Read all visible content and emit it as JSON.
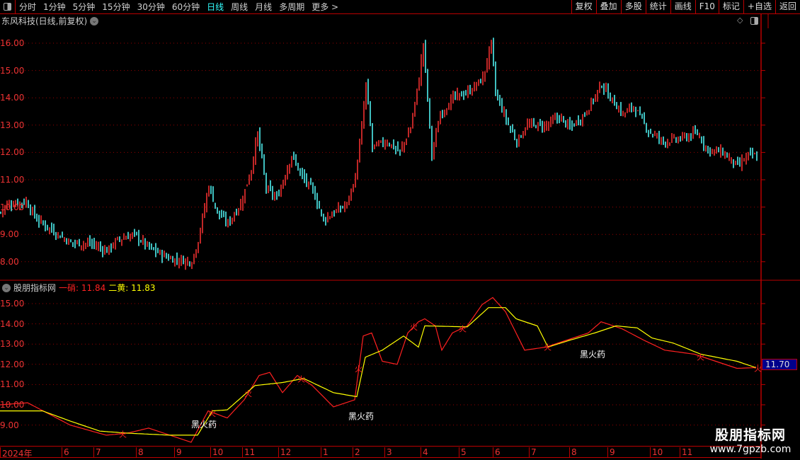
{
  "toolbar": {
    "periods": [
      "分时",
      "1分钟",
      "5分钟",
      "15分钟",
      "30分钟",
      "60分钟",
      "日线",
      "周线",
      "月线",
      "多周期",
      "更多 >"
    ],
    "active_period": "日线",
    "actions": [
      "复权",
      "叠加",
      "多股",
      "统计",
      "画线",
      "F10",
      "标记",
      "+自选",
      "返回"
    ]
  },
  "main_chart": {
    "title": "东风科技(日线,前复权)",
    "price_ticks": [
      "16.00",
      "15.00",
      "14.00",
      "13.00",
      "12.00",
      "11.00",
      "10.00",
      "9.00",
      "8.00"
    ],
    "price_range": [
      7.6,
      16.8
    ],
    "closes": [
      [
        0,
        9.8
      ],
      [
        3,
        10.1
      ],
      [
        12,
        10.2
      ],
      [
        17,
        9.55
      ],
      [
        27,
        9.0
      ],
      [
        33,
        8.7
      ],
      [
        43,
        8.65
      ],
      [
        50,
        8.4
      ],
      [
        55,
        8.8
      ],
      [
        63,
        9.0
      ],
      [
        70,
        8.5
      ],
      [
        80,
        8.1
      ],
      [
        90,
        8.0
      ],
      [
        93,
        8.8
      ],
      [
        98,
        10.8
      ],
      [
        102,
        9.8
      ],
      [
        107,
        9.4
      ],
      [
        113,
        10.1
      ],
      [
        118,
        11.4
      ],
      [
        121,
        12.7
      ],
      [
        125,
        10.7
      ],
      [
        130,
        10.3
      ],
      [
        137,
        11.9
      ],
      [
        142,
        11.1
      ],
      [
        147,
        10.6
      ],
      [
        152,
        9.55
      ],
      [
        157,
        9.8
      ],
      [
        163,
        10.1
      ],
      [
        167,
        11.1
      ],
      [
        170,
        12.9
      ],
      [
        172,
        14.5
      ],
      [
        175,
        12.2
      ],
      [
        182,
        12.4
      ],
      [
        188,
        12.0
      ],
      [
        193,
        12.9
      ],
      [
        197,
        14.7
      ],
      [
        199,
        16.0
      ],
      [
        203,
        11.9
      ],
      [
        207,
        13.4
      ],
      [
        213,
        14.0
      ],
      [
        220,
        14.2
      ],
      [
        227,
        14.7
      ],
      [
        231,
        16.0
      ],
      [
        233,
        14.2
      ],
      [
        238,
        13.2
      ],
      [
        243,
        12.4
      ],
      [
        248,
        13.0
      ],
      [
        257,
        13.0
      ],
      [
        263,
        13.3
      ],
      [
        268,
        12.9
      ],
      [
        275,
        13.4
      ],
      [
        283,
        14.5
      ],
      [
        287,
        14.0
      ],
      [
        293,
        13.4
      ],
      [
        298,
        13.7
      ],
      [
        305,
        12.8
      ],
      [
        312,
        12.4
      ],
      [
        320,
        12.5
      ],
      [
        328,
        12.7
      ],
      [
        333,
        12.1
      ],
      [
        340,
        12.0
      ],
      [
        347,
        11.5
      ],
      [
        352,
        11.9
      ],
      [
        356,
        11.85
      ]
    ],
    "colors": {
      "up": "#ff3232",
      "down": "#54ffff",
      "grid": "#a00000"
    }
  },
  "indicator": {
    "name": "股朋指标网",
    "line1_label": "一硝",
    "line1_value": "11.84",
    "line2_label": "二黄",
    "line2_value": "11.83",
    "ticks": [
      "15.00",
      "14.00",
      "13.00",
      "12.00",
      "11.00",
      "10.00",
      "9.00"
    ],
    "range": [
      8.1,
      15.8
    ],
    "current_price": "11.70",
    "line1": [
      [
        0,
        10.0
      ],
      [
        13,
        10.1
      ],
      [
        23,
        9.55
      ],
      [
        33,
        9.0
      ],
      [
        50,
        8.5
      ],
      [
        60,
        8.6
      ],
      [
        70,
        8.85
      ],
      [
        80,
        8.5
      ],
      [
        90,
        8.15
      ],
      [
        98,
        9.7
      ],
      [
        107,
        9.35
      ],
      [
        115,
        10.25
      ],
      [
        122,
        11.45
      ],
      [
        127,
        11.6
      ],
      [
        133,
        10.6
      ],
      [
        140,
        11.45
      ],
      [
        147,
        10.95
      ],
      [
        157,
        9.9
      ],
      [
        167,
        10.25
      ],
      [
        171,
        13.4
      ],
      [
        175,
        13.55
      ],
      [
        180,
        12.15
      ],
      [
        187,
        12.0
      ],
      [
        192,
        13.55
      ],
      [
        197,
        14.1
      ],
      [
        200,
        14.25
      ],
      [
        205,
        13.9
      ],
      [
        208,
        12.7
      ],
      [
        213,
        13.55
      ],
      [
        220,
        13.9
      ],
      [
        227,
        14.95
      ],
      [
        232,
        15.3
      ],
      [
        238,
        14.6
      ],
      [
        247,
        12.7
      ],
      [
        257,
        12.85
      ],
      [
        267,
        13.2
      ],
      [
        277,
        13.55
      ],
      [
        283,
        14.1
      ],
      [
        293,
        13.75
      ],
      [
        303,
        13.2
      ],
      [
        313,
        12.7
      ],
      [
        327,
        12.5
      ],
      [
        337,
        12.15
      ],
      [
        347,
        11.8
      ],
      [
        356,
        11.84
      ]
    ],
    "line2": [
      [
        0,
        9.7
      ],
      [
        20,
        9.7
      ],
      [
        33,
        9.2
      ],
      [
        47,
        8.7
      ],
      [
        60,
        8.6
      ],
      [
        80,
        8.5
      ],
      [
        93,
        8.5
      ],
      [
        100,
        9.7
      ],
      [
        107,
        9.75
      ],
      [
        120,
        10.95
      ],
      [
        133,
        11.1
      ],
      [
        143,
        11.3
      ],
      [
        157,
        10.6
      ],
      [
        168,
        10.4
      ],
      [
        172,
        12.35
      ],
      [
        180,
        12.7
      ],
      [
        190,
        13.4
      ],
      [
        197,
        12.85
      ],
      [
        200,
        13.9
      ],
      [
        220,
        13.85
      ],
      [
        230,
        14.8
      ],
      [
        238,
        14.8
      ],
      [
        243,
        14.25
      ],
      [
        253,
        13.9
      ],
      [
        258,
        12.85
      ],
      [
        267,
        13.15
      ],
      [
        280,
        13.55
      ],
      [
        290,
        13.9
      ],
      [
        300,
        13.8
      ],
      [
        307,
        13.3
      ],
      [
        317,
        13.05
      ],
      [
        330,
        12.5
      ],
      [
        347,
        12.15
      ],
      [
        356,
        11.83
      ]
    ],
    "signals": {
      "text": "黑火药",
      "marker": "火",
      "signal_days": [
        94,
        168,
        277
      ],
      "marker_days": [
        58,
        100,
        117,
        142,
        169,
        195,
        218,
        258,
        330,
        357
      ]
    },
    "colors": {
      "line1": "#ff2020",
      "line2": "#ffff00"
    }
  },
  "date_axis": {
    "labels": [
      [
        "2024年",
        0
      ],
      [
        "6",
        29
      ],
      [
        "7",
        44
      ],
      [
        "8",
        64
      ],
      [
        "9",
        82
      ],
      [
        "10",
        99
      ],
      [
        "11",
        114
      ],
      [
        "12",
        131
      ],
      [
        "1",
        151
      ],
      [
        "2",
        166
      ],
      [
        "3",
        181
      ],
      [
        "4",
        198
      ],
      [
        "5",
        216
      ],
      [
        "6",
        232
      ],
      [
        "7",
        249
      ],
      [
        "8",
        268
      ],
      [
        "9",
        286
      ],
      [
        "10",
        306
      ],
      [
        "11",
        320
      ]
    ]
  },
  "watermark": {
    "line1": "股朋指标网",
    "line2": "www.7gpzb.com"
  }
}
